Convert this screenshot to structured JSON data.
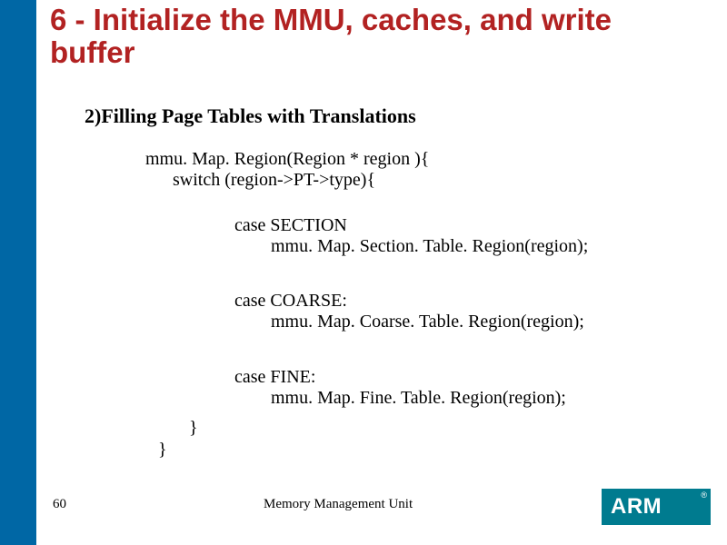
{
  "colors": {
    "left_bar": "#0067a5",
    "title": "#b22222",
    "logo_bg": "#007b8f",
    "logo_text": "#ffffff",
    "body_text": "#000000",
    "background": "#ffffff"
  },
  "title": "6 - Initialize the MMU, caches, and write buffer",
  "subtitle": "2)Filling Page Tables with Translations",
  "code": {
    "line1": "mmu. Map. Region(Region * region ){",
    "line2": "      switch (region->PT->type){",
    "case1_label": "case SECTION",
    "case1_call": "mmu. Map. Section. Table. Region(region);",
    "case2_label": "case COARSE:",
    "case2_call": "mmu. Map. Coarse. Table. Region(region);",
    "case3_label": "case FINE:",
    "case3_call": "mmu. Map. Fine. Table. Region(region);",
    "brace1": "}",
    "brace2": "}"
  },
  "footer": {
    "page": "60",
    "label": "Memory Management Unit"
  },
  "logo": {
    "text": "ARM",
    "reg": "®"
  }
}
